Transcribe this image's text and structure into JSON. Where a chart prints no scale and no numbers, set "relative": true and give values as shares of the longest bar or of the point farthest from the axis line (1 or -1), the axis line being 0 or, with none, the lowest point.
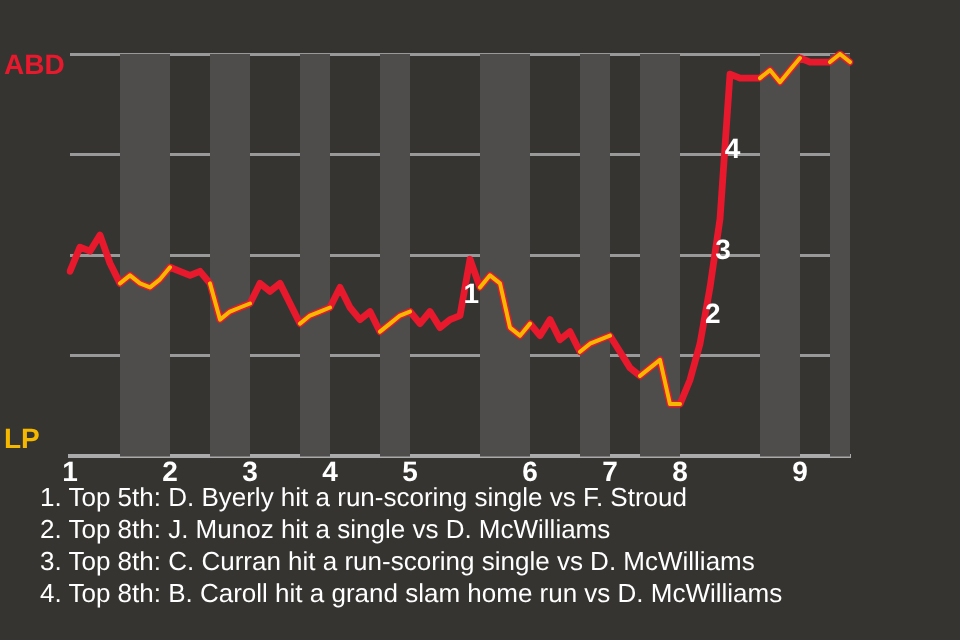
{
  "chart_data": {
    "type": "line",
    "relative": true,
    "grid": "y",
    "marker": "none",
    "line_style": "solid",
    "categories": [
      "1",
      null,
      null,
      null,
      null,
      null,
      null,
      null,
      null,
      null,
      "2",
      null,
      null,
      null,
      null,
      null,
      null,
      null,
      "3",
      null,
      null,
      null,
      null,
      null,
      null,
      null,
      "4",
      null,
      null,
      null,
      null,
      null,
      null,
      null,
      "5",
      null,
      null,
      null,
      null,
      null,
      null,
      null,
      null,
      null,
      null,
      null,
      "6",
      null,
      null,
      null,
      null,
      null,
      null,
      null,
      "7",
      null,
      null,
      null,
      null,
      null,
      null,
      "8",
      null,
      null,
      null,
      null,
      null,
      null,
      null,
      null,
      null,
      null,
      null,
      "9",
      null,
      null,
      null,
      null,
      null
    ],
    "series": [
      {
        "color": "#e8192c",
        "values": [
          0.46,
          0.52,
          0.51,
          0.55,
          0.48,
          0.43,
          0.45,
          0.43,
          0.42,
          0.44,
          0.47,
          0.46,
          0.45,
          0.46,
          0.43,
          0.34,
          0.36,
          0.37,
          0.38,
          0.43,
          0.41,
          0.43,
          0.38,
          0.33,
          0.35,
          0.36,
          0.37,
          0.42,
          0.37,
          0.34,
          0.36,
          0.31,
          0.33,
          0.35,
          0.36,
          0.33,
          0.36,
          0.32,
          0.34,
          0.35,
          0.49,
          0.42,
          0.45,
          0.43,
          0.32,
          0.3,
          0.33,
          0.3,
          0.34,
          0.29,
          0.31,
          0.26,
          0.28,
          0.29,
          0.3,
          0.26,
          0.22,
          0.2,
          0.22,
          0.24,
          0.13,
          0.13,
          0.19,
          0.28,
          0.42,
          0.59,
          0.95,
          0.94,
          0.94,
          0.94,
          0.96,
          0.93,
          0.96,
          0.99,
          0.98,
          0.98,
          0.98,
          1,
          0.98
        ]
      },
      {
        "color": "#f5b800",
        "values": [
          null,
          null,
          null,
          null,
          null,
          0.43,
          0.45,
          0.43,
          0.42,
          0.44,
          0.47,
          null,
          null,
          null,
          0.43,
          0.34,
          0.36,
          0.37,
          0.38,
          null,
          null,
          null,
          null,
          0.33,
          0.35,
          0.36,
          0.37,
          null,
          null,
          null,
          null,
          0.31,
          0.33,
          0.35,
          0.36,
          null,
          null,
          null,
          null,
          null,
          null,
          0.42,
          0.45,
          0.43,
          0.32,
          0.3,
          0.33,
          null,
          null,
          null,
          null,
          0.26,
          0.28,
          0.29,
          0.3,
          null,
          null,
          0.2,
          0.22,
          0.24,
          0.13,
          0.13,
          null,
          null,
          null,
          null,
          null,
          null,
          null,
          0.94,
          0.96,
          0.93,
          0.96,
          0.99,
          null,
          null,
          0.98,
          1,
          0.98
        ]
      }
    ],
    "annotations": [
      "ABD",
      "LP",
      {
        "text": "1",
        "y": 0.4
      },
      {
        "text": "2",
        "y": 0.35
      },
      {
        "text": "3",
        "y": 0.51
      },
      {
        "text": "4",
        "y": 0.76
      },
      "1. Top 5th: D. Byerly hit a run-scoring single vs F. Stroud",
      "2. Top 8th: J. Munoz hit a single vs D. McWilliams",
      "3. Top 8th: C. Curran hit a run-scoring single vs D. McWilliams",
      "4. Top 8th: B. Caroll hit a grand slam home run vs D. McWilliams"
    ]
  }
}
